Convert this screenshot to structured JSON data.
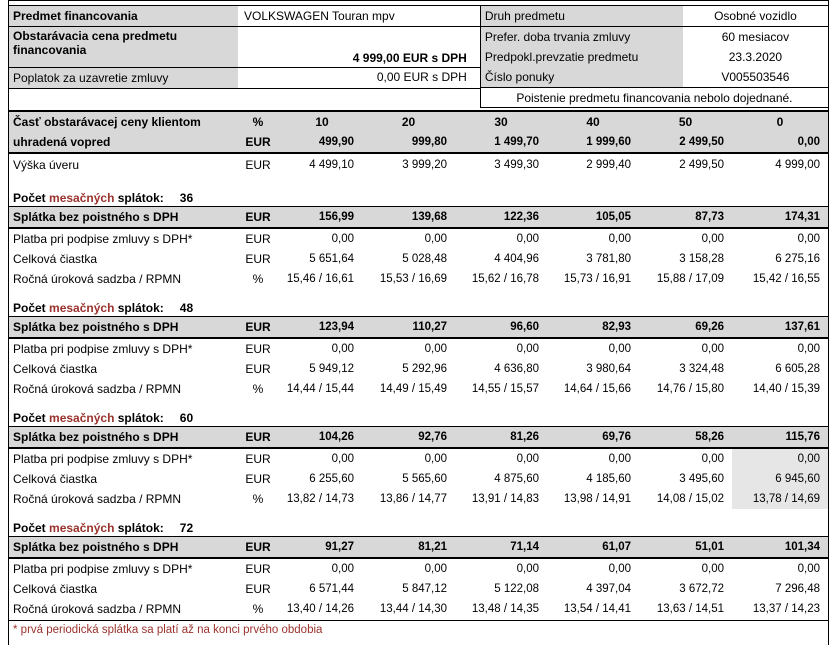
{
  "colors": {
    "accent_red": "#9a322d",
    "header_gray": "#d8d8d8",
    "highlight_gray": "#e6e6e6"
  },
  "top_left": {
    "rows": [
      {
        "label": "Predmet financovania",
        "value": "VOLKSWAGEN Touran mpv"
      },
      {
        "label_line1": "Obstarávacia cena predmetu",
        "label_line2": "financovania",
        "value": "4 999,00 EUR s DPH"
      },
      {
        "label": "Poplatok za uzavretie zmluvy",
        "value": "0,00 EUR s DPH"
      }
    ]
  },
  "top_right": {
    "rows": [
      {
        "label": "Druh predmetu",
        "value": "Osobné vozidlo"
      },
      {
        "label": "Prefer. doba trvania zmluvy",
        "value": "60 mesiacov"
      },
      {
        "label": "Predpokl.prevzatie predmetu",
        "value": "23.3.2020"
      },
      {
        "label": "Číslo ponuky",
        "value": "V005503546"
      }
    ],
    "note": "Poistenie predmetu financovania nebolo dojednané."
  },
  "main": {
    "units": {
      "eur": "EUR",
      "pct": "%"
    },
    "header": {
      "label_line1": "Časť obstarávacej ceny klientom",
      "label_line2": "uhradená vopred",
      "percents": [
        "10",
        "20",
        "30",
        "40",
        "50",
        "0"
      ],
      "amounts": [
        "499,90",
        "999,80",
        "1 499,70",
        "1 999,60",
        "2 499,50",
        "0,00"
      ]
    },
    "loan_row": {
      "label": "Výška úveru",
      "values": [
        "4 499,10",
        "3 999,20",
        "3 499,30",
        "2 999,40",
        "2 499,50",
        "4 999,00"
      ]
    },
    "section_title": {
      "prefix": "Počet",
      "red_word": "mesačných",
      "suffix": "splátok:"
    },
    "row_labels": {
      "installment": "Splátka bez poistného s DPH",
      "signing": "Platba pri podpise zmluvy s DPH*",
      "total": "Celková čiastka",
      "rate": "Ročná úroková sadzba / RPMN"
    },
    "sections": [
      {
        "months": "36",
        "installment": [
          "156,99",
          "139,68",
          "122,36",
          "105,05",
          "87,73",
          "174,31"
        ],
        "signing": [
          "0,00",
          "0,00",
          "0,00",
          "0,00",
          "0,00",
          "0,00"
        ],
        "total": [
          "5 651,64",
          "5 028,48",
          "4 404,96",
          "3 781,80",
          "3 158,28",
          "6 275,16"
        ],
        "rate": [
          "15,46 / 16,61",
          "15,53 / 16,69",
          "15,62 / 16,78",
          "15,73 / 16,91",
          "15,88 / 17,09",
          "15,42 / 16,55"
        ]
      },
      {
        "months": "48",
        "installment": [
          "123,94",
          "110,27",
          "96,60",
          "82,93",
          "69,26",
          "137,61"
        ],
        "signing": [
          "0,00",
          "0,00",
          "0,00",
          "0,00",
          "0,00",
          "0,00"
        ],
        "total": [
          "5 949,12",
          "5 292,96",
          "4 636,80",
          "3 980,64",
          "3 324,48",
          "6 605,28"
        ],
        "rate": [
          "14,44 / 15,44",
          "14,49 / 15,49",
          "14,55 / 15,57",
          "14,64 / 15,66",
          "14,76 / 15,80",
          "14,40 / 15,39"
        ]
      },
      {
        "months": "60",
        "installment": [
          "104,26",
          "92,76",
          "81,26",
          "69,76",
          "58,26",
          "115,76"
        ],
        "signing": [
          "0,00",
          "0,00",
          "0,00",
          "0,00",
          "0,00",
          "0,00"
        ],
        "total": [
          "6 255,60",
          "5 565,60",
          "4 875,60",
          "4 185,60",
          "3 495,60",
          "6 945,60"
        ],
        "rate": [
          "13,82 / 14,73",
          "13,86 / 14,77",
          "13,91 / 14,83",
          "13,98 / 14,91",
          "14,08 / 15,02",
          "13,78 / 14,69"
        ],
        "highlight_last": true
      },
      {
        "months": "72",
        "installment": [
          "91,27",
          "81,21",
          "71,14",
          "61,07",
          "51,01",
          "101,34"
        ],
        "signing": [
          "0,00",
          "0,00",
          "0,00",
          "0,00",
          "0,00",
          "0,00"
        ],
        "total": [
          "6 571,44",
          "5 847,12",
          "5 122,08",
          "4 397,04",
          "3 672,72",
          "7 296,48"
        ],
        "rate": [
          "13,40 / 14,26",
          "13,44 / 14,30",
          "13,48 / 14,35",
          "13,54 / 14,41",
          "13,63 / 14,51",
          "13,37 / 14,23"
        ]
      }
    ]
  },
  "footnote": "* prvá periodická splátka sa platí až na konci prvého obdobia"
}
